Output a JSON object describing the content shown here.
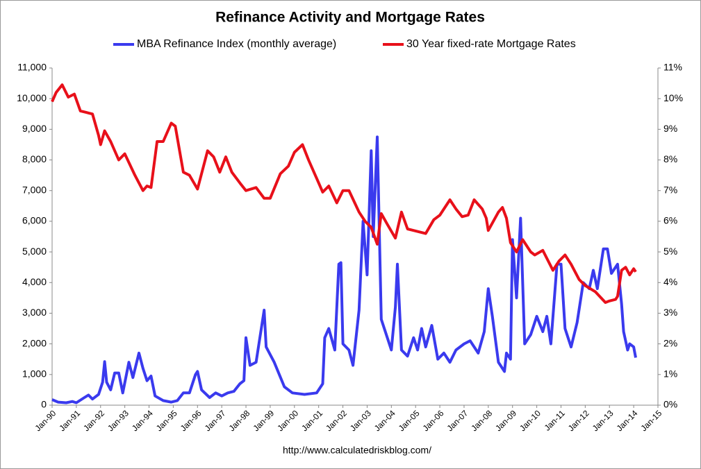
{
  "chart_data": {
    "type": "line",
    "title": "Refinance Activity and Mortgage Rates",
    "source": "http://www.calculatedriskblog.com/",
    "legend": "top",
    "grid": false,
    "xlim": [
      "1990-01",
      "2015-01"
    ],
    "xticks": [
      {
        "value": "1990-01",
        "label": "Jan-90"
      },
      {
        "value": "1991-01",
        "label": "Jan-91"
      },
      {
        "value": "1992-01",
        "label": "Jan-92"
      },
      {
        "value": "1993-01",
        "label": "Jan-93"
      },
      {
        "value": "1994-01",
        "label": "Jan-94"
      },
      {
        "value": "1995-01",
        "label": "Jan-95"
      },
      {
        "value": "1996-01",
        "label": "Jan-96"
      },
      {
        "value": "1997-01",
        "label": "Jan-97"
      },
      {
        "value": "1998-01",
        "label": "Jan-98"
      },
      {
        "value": "1999-01",
        "label": "Jan-99"
      },
      {
        "value": "2000-01",
        "label": "Jan-00"
      },
      {
        "value": "2001-01",
        "label": "Jan-01"
      },
      {
        "value": "2002-01",
        "label": "Jan-02"
      },
      {
        "value": "2003-01",
        "label": "Jan-03"
      },
      {
        "value": "2004-01",
        "label": "Jan-04"
      },
      {
        "value": "2005-01",
        "label": "Jan-05"
      },
      {
        "value": "2006-01",
        "label": "Jan-06"
      },
      {
        "value": "2007-01",
        "label": "Jan-07"
      },
      {
        "value": "2008-01",
        "label": "Jan-08"
      },
      {
        "value": "2009-01",
        "label": "Jan-09"
      },
      {
        "value": "2010-01",
        "label": "Jan-10"
      },
      {
        "value": "2011-01",
        "label": "Jan-11"
      },
      {
        "value": "2012-01",
        "label": "Jan-12"
      },
      {
        "value": "2013-01",
        "label": "Jan-13"
      },
      {
        "value": "2014-01",
        "label": "Jan-14"
      },
      {
        "value": "2015-01",
        "label": "Jan-15"
      }
    ],
    "ylim": [
      0,
      11000
    ],
    "yticks": [
      0,
      {
        "value": 1000,
        "label": "1,000"
      },
      {
        "value": 2000,
        "label": "2,000"
      },
      {
        "value": 3000,
        "label": "3,000"
      },
      {
        "value": 4000,
        "label": "4,000"
      },
      {
        "value": 5000,
        "label": "5,000"
      },
      {
        "value": 6000,
        "label": "6,000"
      },
      {
        "value": 7000,
        "label": "7,000"
      },
      {
        "value": 8000,
        "label": "8,000"
      },
      {
        "value": 9000,
        "label": "9,000"
      },
      {
        "value": 10000,
        "label": "10,000"
      },
      {
        "value": 11000,
        "label": "11,000"
      }
    ],
    "y2lim": [
      0,
      11
    ],
    "y2ticks": [
      {
        "value": 0,
        "label": "0%"
      },
      {
        "value": 1,
        "label": "1%"
      },
      {
        "value": 2,
        "label": "2%"
      },
      {
        "value": 3,
        "label": "3%"
      },
      {
        "value": 4,
        "label": "4%"
      },
      {
        "value": 5,
        "label": "5%"
      },
      {
        "value": 6,
        "label": "6%"
      },
      {
        "value": 7,
        "label": "7%"
      },
      {
        "value": 8,
        "label": "8%"
      },
      {
        "value": 9,
        "label": "9%"
      },
      {
        "value": 10,
        "label": "10%"
      },
      {
        "value": 11,
        "label": "11%"
      }
    ],
    "series": [
      {
        "name": "MBA Refinance Index (monthly average)",
        "color": "#3a3aee",
        "axis": "y",
        "x": [
          "1990-01",
          "1990-04",
          "1990-08",
          "1990-11",
          "1991-01",
          "1991-05",
          "1991-07",
          "1991-09",
          "1991-12",
          "1992-02",
          "1992-03",
          "1992-04",
          "1992-06",
          "1992-08",
          "1992-10",
          "1992-12",
          "1993-03",
          "1993-05",
          "1993-08",
          "1993-10",
          "1993-12",
          "1994-02",
          "1994-04",
          "1994-08",
          "1994-12",
          "1995-03",
          "1995-06",
          "1995-09",
          "1995-12",
          "1996-01",
          "1996-03",
          "1996-07",
          "1996-10",
          "1997-01",
          "1997-04",
          "1997-07",
          "1997-10",
          "1997-12",
          "1998-01",
          "1998-03",
          "1998-06",
          "1998-10",
          "1998-11",
          "1999-03",
          "1999-08",
          "1999-12",
          "2000-06",
          "2000-12",
          "2001-03",
          "2001-04",
          "2001-06",
          "2001-09",
          "2001-11",
          "2001-12",
          "2002-01",
          "2002-04",
          "2002-06",
          "2002-09",
          "2002-11",
          "2003-01",
          "2003-03",
          "2003-04",
          "2003-06",
          "2003-08",
          "2003-11",
          "2004-01",
          "2004-03",
          "2004-04",
          "2004-06",
          "2004-09",
          "2004-12",
          "2005-02",
          "2005-04",
          "2005-06",
          "2005-09",
          "2005-12",
          "2006-03",
          "2006-06",
          "2006-09",
          "2007-01",
          "2007-04",
          "2007-08",
          "2007-11",
          "2008-01",
          "2008-03",
          "2008-06",
          "2008-09",
          "2008-10",
          "2008-12",
          "2009-01",
          "2009-03",
          "2009-05",
          "2009-07",
          "2009-10",
          "2010-01",
          "2010-04",
          "2010-06",
          "2010-08",
          "2010-11",
          "2011-01",
          "2011-03",
          "2011-06",
          "2011-09",
          "2011-12",
          "2012-03",
          "2012-05",
          "2012-07",
          "2012-10",
          "2012-12",
          "2013-02",
          "2013-05",
          "2013-07",
          "2013-08",
          "2013-10",
          "2013-11",
          "2014-01",
          "2014-02"
        ],
        "values": [
          180,
          100,
          80,
          120,
          80,
          250,
          330,
          200,
          350,
          750,
          1420,
          750,
          500,
          1050,
          1050,
          400,
          1400,
          900,
          1700,
          1200,
          800,
          950,
          300,
          150,
          100,
          150,
          400,
          400,
          1000,
          1100,
          500,
          250,
          400,
          300,
          400,
          450,
          700,
          800,
          2200,
          1300,
          1400,
          3100,
          1900,
          1400,
          600,
          400,
          350,
          400,
          700,
          2200,
          2500,
          1800,
          4600,
          4650,
          2000,
          1800,
          1300,
          3100,
          6000,
          4250,
          8300,
          5500,
          8750,
          2800,
          2200,
          1800,
          3200,
          4600,
          1800,
          1600,
          2200,
          1800,
          2500,
          1900,
          2600,
          1500,
          1700,
          1400,
          1800,
          2000,
          2100,
          1700,
          2400,
          3800,
          2900,
          1400,
          1100,
          1700,
          1500,
          5400,
          3500,
          6100,
          2000,
          2300,
          2900,
          2400,
          2900,
          2000,
          4600,
          4600,
          2500,
          1900,
          2700,
          4000,
          3800,
          4400,
          3800,
          5100,
          5100,
          4300,
          4600,
          3300,
          2400,
          1800,
          2000,
          1900,
          1550
        ]
      },
      {
        "name": "30 Year fixed-rate Mortgage Rates",
        "color": "#e8101a",
        "axis": "y2",
        "x": [
          "1990-01",
          "1990-03",
          "1990-06",
          "1990-09",
          "1990-12",
          "1991-03",
          "1991-06",
          "1991-09",
          "1991-12",
          "1992-01",
          "1992-03",
          "1992-06",
          "1992-10",
          "1993-01",
          "1993-06",
          "1993-10",
          "1993-12",
          "1994-02",
          "1994-05",
          "1994-08",
          "1994-12",
          "1995-02",
          "1995-06",
          "1995-09",
          "1996-01",
          "1996-06",
          "1996-09",
          "1996-12",
          "1997-03",
          "1997-06",
          "1997-10",
          "1998-01",
          "1998-06",
          "1998-10",
          "1999-01",
          "1999-06",
          "1999-10",
          "2000-01",
          "2000-05",
          "2000-08",
          "2000-12",
          "2001-03",
          "2001-06",
          "2001-10",
          "2002-01",
          "2002-04",
          "2002-09",
          "2002-12",
          "2003-03",
          "2003-06",
          "2003-08",
          "2003-11",
          "2004-03",
          "2004-06",
          "2004-09",
          "2004-12",
          "2005-06",
          "2005-10",
          "2006-01",
          "2006-06",
          "2006-09",
          "2006-12",
          "2007-03",
          "2007-06",
          "2007-10",
          "2007-12",
          "2008-01",
          "2008-06",
          "2008-08",
          "2008-10",
          "2008-12",
          "2009-03",
          "2009-06",
          "2009-10",
          "2009-12",
          "2010-04",
          "2010-09",
          "2010-12",
          "2011-03",
          "2011-06",
          "2011-10",
          "2012-01",
          "2012-06",
          "2012-11",
          "2013-01",
          "2013-04",
          "2013-05",
          "2013-07",
          "2013-09",
          "2013-11",
          "2014-01",
          "2014-02"
        ],
        "values": [
          9.9,
          10.2,
          10.45,
          10.05,
          10.15,
          9.6,
          9.55,
          9.5,
          8.8,
          8.5,
          8.95,
          8.6,
          8.0,
          8.2,
          7.5,
          7.0,
          7.15,
          7.1,
          8.6,
          8.6,
          9.2,
          9.1,
          7.6,
          7.5,
          7.05,
          8.3,
          8.1,
          7.6,
          8.1,
          7.6,
          7.25,
          7.0,
          7.1,
          6.75,
          6.75,
          7.55,
          7.8,
          8.25,
          8.5,
          8.0,
          7.4,
          6.95,
          7.15,
          6.6,
          7.0,
          7.0,
          6.3,
          6.0,
          5.8,
          5.25,
          6.25,
          5.9,
          5.45,
          6.3,
          5.75,
          5.7,
          5.6,
          6.05,
          6.2,
          6.7,
          6.4,
          6.15,
          6.2,
          6.7,
          6.4,
          6.1,
          5.7,
          6.3,
          6.45,
          6.1,
          5.3,
          5.0,
          5.4,
          5.0,
          4.9,
          5.05,
          4.4,
          4.7,
          4.9,
          4.6,
          4.1,
          3.9,
          3.7,
          3.35,
          3.4,
          3.45,
          3.55,
          4.4,
          4.5,
          4.25,
          4.45,
          4.35
        ]
      }
    ]
  }
}
